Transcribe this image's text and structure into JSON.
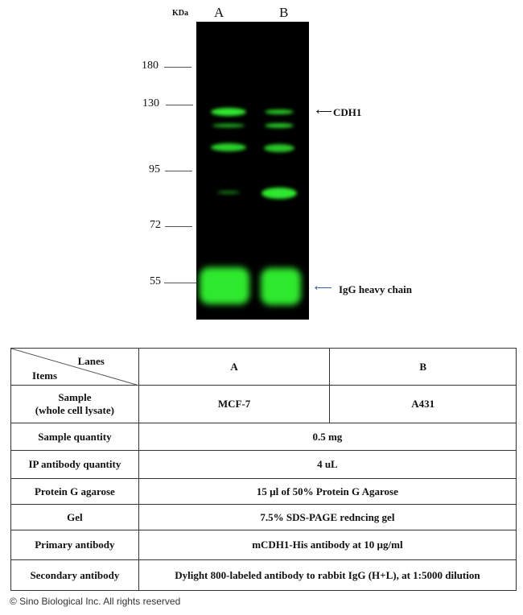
{
  "blot": {
    "unit_label": "KDa",
    "lanes": [
      "A",
      "B"
    ],
    "markers": [
      "180",
      "130",
      "95",
      "72",
      "55"
    ],
    "annotations": {
      "cdh1": "CDH1",
      "igg": "IgG heavy chain"
    },
    "band_color": "#2ee82e",
    "igg_arrow_color": "#3a5fa0"
  },
  "table": {
    "header": {
      "lanes": "Lanes",
      "items": "Items",
      "a": "A",
      "b": "B"
    },
    "rows": [
      {
        "label": "Sample",
        "label2": "(whole cell lysate)",
        "a": "MCF-7",
        "b": "A431"
      },
      {
        "label": "Sample quantity",
        "value": "0.5 mg"
      },
      {
        "label": "IP antibody quantity",
        "value": "4 uL"
      },
      {
        "label": "Protein G agarose",
        "value": "15 µl of  50%  Protein G Agarose"
      },
      {
        "label": "Gel",
        "value": "7.5%  SDS-PAGE redncing gel"
      },
      {
        "label": "Primary antibody",
        "value": "mCDH1-His antibody at 10 µg/ml"
      },
      {
        "label": "Secondary antibody",
        "value": "Dylight 800-labeled antibody to rabbit IgG (H+L), at  1:5000 dilution"
      }
    ]
  },
  "footer": "© Sino Biological Inc. All rights reserved"
}
